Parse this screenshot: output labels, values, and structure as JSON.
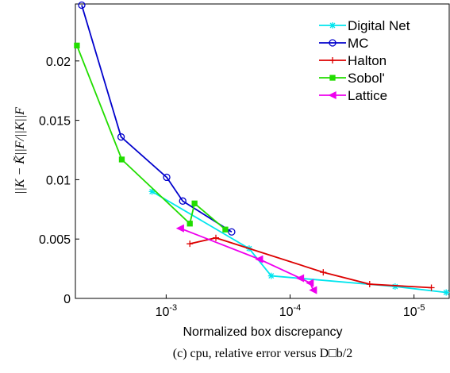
{
  "chart_data": {
    "type": "line",
    "x_label": "Normalized box discrepancy",
    "y_label": "||K − K̃||F/||K||F",
    "caption": "(c) cpu, relative error versus D□b/2",
    "xscale": "log",
    "xreversed": true,
    "xlim": [
      0.0054,
      5.2e-06
    ],
    "xticks": [
      {
        "value": 0.001,
        "label": "10^-3"
      },
      {
        "value": 0.0001,
        "label": "10^-4"
      },
      {
        "value": 1e-05,
        "label": "10^-5"
      }
    ],
    "ylim": [
      0,
      0.0248
    ],
    "yticks": [
      0,
      0.005,
      0.01,
      0.015,
      0.02
    ],
    "legend": "upper right",
    "series": [
      {
        "name": "Digital Net",
        "color": "#00e5ee",
        "marker": "asterisk",
        "x": [
          0.0013,
          0.000214,
          0.000142,
          1.42e-05,
          5.5e-06
        ],
        "values": [
          0.009,
          0.0042,
          0.0019,
          0.001,
          0.0005
        ]
      },
      {
        "name": "MC",
        "color": "#0000cc",
        "marker": "circle",
        "x": [
          0.0048,
          0.00231,
          0.00099,
          0.000735,
          0.000296
        ],
        "values": [
          0.0247,
          0.0136,
          0.0102,
          0.0082,
          0.0056
        ]
      },
      {
        "name": "Halton",
        "color": "#dd0000",
        "marker": "plus",
        "x": [
          0.000644,
          0.000397,
          5.4e-05,
          2.28e-05,
          7.24e-06
        ],
        "values": [
          0.0046,
          0.0051,
          0.0022,
          0.0012,
          0.0009
        ]
      },
      {
        "name": "Sobol'",
        "color": "#22dd00",
        "marker": "square",
        "x": [
          0.00525,
          0.00228,
          0.000644,
          0.00059,
          0.000333
        ],
        "values": [
          0.0213,
          0.0117,
          0.0063,
          0.008,
          0.0058
        ]
      },
      {
        "name": "Lattice",
        "color": "#ee00ee",
        "marker": "triangle",
        "x": [
          0.000768,
          0.000177,
          8.26e-05,
          6.9e-05,
          6.5e-05
        ],
        "values": [
          0.0059,
          0.0033,
          0.0017,
          0.0013,
          0.0007
        ]
      }
    ]
  }
}
